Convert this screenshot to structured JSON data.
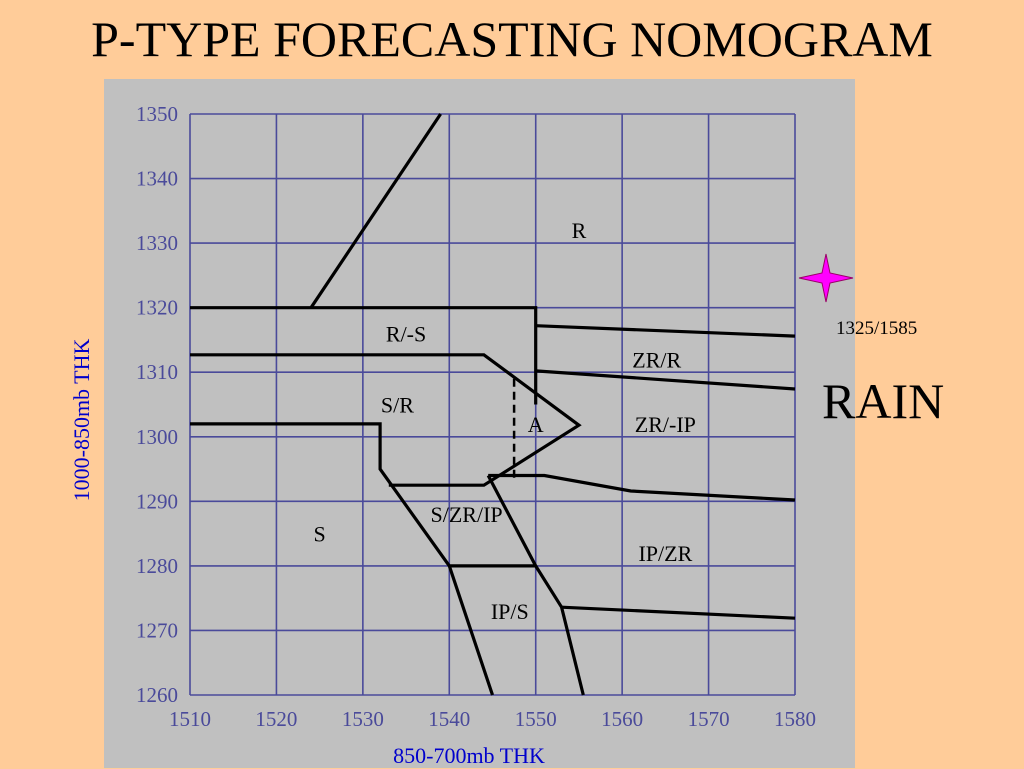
{
  "title": "P-TYPE FORECASTING NOMOGRAM",
  "y_axis_title": "1000-850mb THK",
  "x_axis_title": "850-700mb THK",
  "plotted_point_label": "1325/1585",
  "result_label": "RAIN",
  "colors": {
    "background": "#ffcc99",
    "panel": "#c0c0c0",
    "grid": "#4a4a9a",
    "axis_title": "#0000cc",
    "marker": "#ff00ff"
  },
  "chart_data": {
    "type": "nomogram",
    "xlim": [
      1510,
      1580
    ],
    "ylim": [
      1260,
      1350
    ],
    "x_ticks": [
      "1510",
      "1520",
      "1530",
      "1540",
      "1550",
      "1560",
      "1570",
      "1580"
    ],
    "y_ticks": [
      "1350",
      "1340",
      "1330",
      "1320",
      "1310",
      "1300",
      "1290",
      "1280",
      "1270",
      "1260"
    ],
    "grid": true,
    "regions": [
      {
        "label": "R",
        "x": 1555,
        "y": 1332
      },
      {
        "label": "R/-S",
        "x": 1535,
        "y": 1316
      },
      {
        "label": "ZR/R",
        "x": 1564,
        "y": 1312
      },
      {
        "label": "S/R",
        "x": 1534,
        "y": 1305
      },
      {
        "label": "A",
        "x": 1550,
        "y": 1302
      },
      {
        "label": "ZR/-IP",
        "x": 1565,
        "y": 1302
      },
      {
        "label": "S/ZR/IP",
        "x": 1542,
        "y": 1288
      },
      {
        "label": "S",
        "x": 1525,
        "y": 1285
      },
      {
        "label": "IP/ZR",
        "x": 1565,
        "y": 1282
      },
      {
        "label": "IP/S",
        "x": 1547,
        "y": 1273
      }
    ],
    "boundaries": [
      {
        "points": [
          [
            1524,
            1320
          ],
          [
            1539,
            1350
          ]
        ]
      },
      {
        "points": [
          [
            1510,
            1320
          ],
          [
            1550,
            1320
          ],
          [
            1550,
            1305
          ]
        ]
      },
      {
        "points": [
          [
            1550,
            1317.2
          ],
          [
            1580,
            1315.6
          ]
        ]
      },
      {
        "points": [
          [
            1550,
            1310.2
          ],
          [
            1580,
            1307.4
          ]
        ]
      },
      {
        "points": [
          [
            1510,
            1312.7
          ],
          [
            1544,
            1312.7
          ],
          [
            1555,
            1301.8
          ],
          [
            1544,
            1292.5
          ],
          [
            1533,
            1292.5
          ]
        ]
      },
      {
        "points": [
          [
            1510,
            1302
          ],
          [
            1532,
            1302
          ],
          [
            1532,
            1295
          ],
          [
            1540,
            1280
          ],
          [
            1545,
            1260
          ]
        ]
      },
      {
        "points": [
          [
            1544.5,
            1294
          ],
          [
            1551,
            1294
          ],
          [
            1561,
            1291.6
          ],
          [
            1580,
            1290.2
          ]
        ]
      },
      {
        "points": [
          [
            1544.5,
            1294
          ],
          [
            1550,
            1280
          ],
          [
            1553,
            1273.6
          ],
          [
            1555.5,
            1260
          ]
        ]
      },
      {
        "points": [
          [
            1540,
            1280
          ],
          [
            1550,
            1280
          ]
        ]
      },
      {
        "points": [
          [
            1553,
            1273.6
          ],
          [
            1580,
            1271.9
          ]
        ]
      },
      {
        "points": [
          [
            1547.5,
            1309
          ],
          [
            1547.5,
            1293.5
          ]
        ],
        "dashed": true
      }
    ],
    "plotted_point": {
      "x": 1585,
      "y": 1325
    }
  }
}
